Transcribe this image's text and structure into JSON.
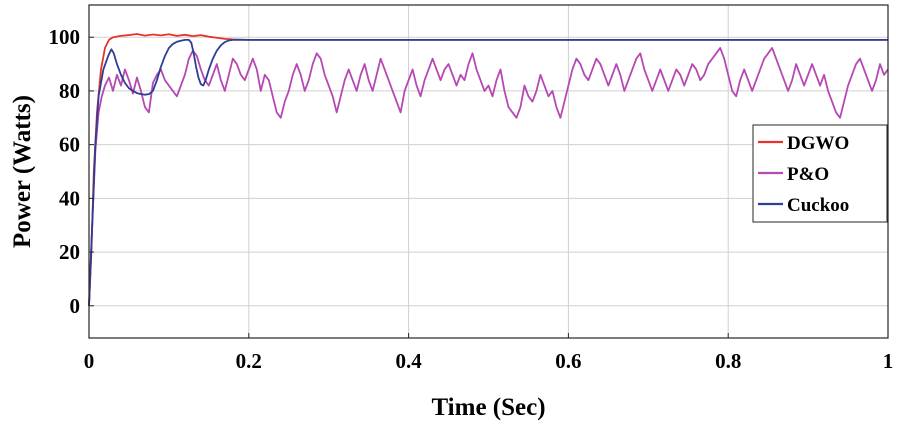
{
  "chart_data": {
    "type": "line",
    "title": "",
    "xlabel": "Time (Sec)",
    "ylabel": "Power (Watts)",
    "xlim": [
      0,
      1
    ],
    "ylim": [
      -12,
      112
    ],
    "xticks": [
      0,
      0.2,
      0.4,
      0.6,
      0.8,
      1
    ],
    "xtick_labels": [
      "0",
      "0.2",
      "0.4",
      "0.6",
      "0.8",
      "1"
    ],
    "yticks": [
      0,
      20,
      40,
      60,
      80,
      100
    ],
    "ytick_labels": [
      "0",
      "20",
      "40",
      "60",
      "80",
      "100"
    ],
    "grid": true,
    "legend_position": "right",
    "series": [
      {
        "name": "DGWO",
        "color": "#e8332a",
        "points": [
          [
            0,
            0
          ],
          [
            0.003,
            20
          ],
          [
            0.006,
            50
          ],
          [
            0.01,
            72
          ],
          [
            0.015,
            88
          ],
          [
            0.02,
            96
          ],
          [
            0.025,
            99
          ],
          [
            0.03,
            100
          ],
          [
            0.04,
            100.5
          ],
          [
            0.05,
            100.8
          ],
          [
            0.06,
            101.2
          ],
          [
            0.07,
            100.6
          ],
          [
            0.08,
            101
          ],
          [
            0.09,
            100.7
          ],
          [
            0.1,
            101.1
          ],
          [
            0.11,
            100.5
          ],
          [
            0.12,
            100.9
          ],
          [
            0.13,
            100.4
          ],
          [
            0.14,
            100.8
          ],
          [
            0.15,
            100.2
          ],
          [
            0.16,
            99.8
          ],
          [
            0.17,
            99.4
          ],
          [
            0.18,
            99.2
          ],
          [
            0.2,
            99
          ],
          [
            0.3,
            99
          ],
          [
            0.4,
            99
          ],
          [
            0.5,
            99
          ],
          [
            0.6,
            99
          ],
          [
            0.7,
            99
          ],
          [
            0.8,
            99
          ],
          [
            0.9,
            99
          ],
          [
            1,
            99
          ]
        ]
      },
      {
        "name": "P&O",
        "color": "#b648b3",
        "points": [
          [
            0,
            0
          ],
          [
            0.004,
            30
          ],
          [
            0.008,
            58
          ],
          [
            0.012,
            72
          ],
          [
            0.016,
            78
          ],
          [
            0.02,
            82
          ],
          [
            0.025,
            85
          ],
          [
            0.03,
            80
          ],
          [
            0.035,
            86
          ],
          [
            0.04,
            82
          ],
          [
            0.045,
            88
          ],
          [
            0.05,
            84
          ],
          [
            0.055,
            79
          ],
          [
            0.06,
            85
          ],
          [
            0.065,
            80
          ],
          [
            0.07,
            74
          ],
          [
            0.075,
            72
          ],
          [
            0.08,
            83
          ],
          [
            0.085,
            86
          ],
          [
            0.09,
            88
          ],
          [
            0.095,
            84
          ],
          [
            0.1,
            82
          ],
          [
            0.105,
            80
          ],
          [
            0.11,
            78
          ],
          [
            0.115,
            82
          ],
          [
            0.12,
            86
          ],
          [
            0.125,
            92
          ],
          [
            0.13,
            95
          ],
          [
            0.135,
            93
          ],
          [
            0.14,
            88
          ],
          [
            0.145,
            84
          ],
          [
            0.15,
            82
          ],
          [
            0.155,
            86
          ],
          [
            0.16,
            90
          ],
          [
            0.165,
            84
          ],
          [
            0.17,
            80
          ],
          [
            0.175,
            86
          ],
          [
            0.18,
            92
          ],
          [
            0.185,
            90
          ],
          [
            0.19,
            86
          ],
          [
            0.195,
            84
          ],
          [
            0.2,
            88
          ],
          [
            0.205,
            92
          ],
          [
            0.21,
            88
          ],
          [
            0.215,
            80
          ],
          [
            0.22,
            86
          ],
          [
            0.225,
            84
          ],
          [
            0.23,
            78
          ],
          [
            0.235,
            72
          ],
          [
            0.24,
            70
          ],
          [
            0.245,
            76
          ],
          [
            0.25,
            80
          ],
          [
            0.255,
            86
          ],
          [
            0.26,
            90
          ],
          [
            0.265,
            86
          ],
          [
            0.27,
            80
          ],
          [
            0.275,
            84
          ],
          [
            0.28,
            90
          ],
          [
            0.285,
            94
          ],
          [
            0.29,
            92
          ],
          [
            0.295,
            86
          ],
          [
            0.3,
            82
          ],
          [
            0.305,
            78
          ],
          [
            0.31,
            72
          ],
          [
            0.315,
            78
          ],
          [
            0.32,
            84
          ],
          [
            0.325,
            88
          ],
          [
            0.33,
            84
          ],
          [
            0.335,
            80
          ],
          [
            0.34,
            86
          ],
          [
            0.345,
            90
          ],
          [
            0.35,
            84
          ],
          [
            0.355,
            80
          ],
          [
            0.36,
            86
          ],
          [
            0.365,
            92
          ],
          [
            0.37,
            88
          ],
          [
            0.375,
            84
          ],
          [
            0.38,
            80
          ],
          [
            0.385,
            76
          ],
          [
            0.39,
            72
          ],
          [
            0.395,
            80
          ],
          [
            0.4,
            84
          ],
          [
            0.405,
            88
          ],
          [
            0.41,
            82
          ],
          [
            0.415,
            78
          ],
          [
            0.42,
            84
          ],
          [
            0.425,
            88
          ],
          [
            0.43,
            92
          ],
          [
            0.435,
            88
          ],
          [
            0.44,
            84
          ],
          [
            0.445,
            88
          ],
          [
            0.45,
            90
          ],
          [
            0.455,
            86
          ],
          [
            0.46,
            82
          ],
          [
            0.465,
            86
          ],
          [
            0.47,
            84
          ],
          [
            0.475,
            90
          ],
          [
            0.48,
            94
          ],
          [
            0.485,
            88
          ],
          [
            0.49,
            84
          ],
          [
            0.495,
            80
          ],
          [
            0.5,
            82
          ],
          [
            0.505,
            78
          ],
          [
            0.51,
            84
          ],
          [
            0.515,
            88
          ],
          [
            0.52,
            80
          ],
          [
            0.525,
            74
          ],
          [
            0.53,
            72
          ],
          [
            0.535,
            70
          ],
          [
            0.54,
            74
          ],
          [
            0.545,
            82
          ],
          [
            0.55,
            78
          ],
          [
            0.555,
            76
          ],
          [
            0.56,
            80
          ],
          [
            0.565,
            86
          ],
          [
            0.57,
            82
          ],
          [
            0.575,
            78
          ],
          [
            0.58,
            80
          ],
          [
            0.585,
            74
          ],
          [
            0.59,
            70
          ],
          [
            0.595,
            76
          ],
          [
            0.6,
            82
          ],
          [
            0.605,
            88
          ],
          [
            0.61,
            92
          ],
          [
            0.615,
            90
          ],
          [
            0.62,
            86
          ],
          [
            0.625,
            84
          ],
          [
            0.63,
            88
          ],
          [
            0.635,
            92
          ],
          [
            0.64,
            90
          ],
          [
            0.645,
            86
          ],
          [
            0.65,
            82
          ],
          [
            0.655,
            86
          ],
          [
            0.66,
            90
          ],
          [
            0.665,
            86
          ],
          [
            0.67,
            80
          ],
          [
            0.675,
            84
          ],
          [
            0.68,
            88
          ],
          [
            0.685,
            92
          ],
          [
            0.69,
            94
          ],
          [
            0.695,
            88
          ],
          [
            0.7,
            84
          ],
          [
            0.705,
            80
          ],
          [
            0.71,
            84
          ],
          [
            0.715,
            88
          ],
          [
            0.72,
            84
          ],
          [
            0.725,
            80
          ],
          [
            0.73,
            84
          ],
          [
            0.735,
            88
          ],
          [
            0.74,
            86
          ],
          [
            0.745,
            82
          ],
          [
            0.75,
            86
          ],
          [
            0.755,
            90
          ],
          [
            0.76,
            88
          ],
          [
            0.765,
            84
          ],
          [
            0.77,
            86
          ],
          [
            0.775,
            90
          ],
          [
            0.78,
            92
          ],
          [
            0.785,
            94
          ],
          [
            0.79,
            96
          ],
          [
            0.795,
            92
          ],
          [
            0.8,
            86
          ],
          [
            0.805,
            80
          ],
          [
            0.81,
            78
          ],
          [
            0.815,
            84
          ],
          [
            0.82,
            88
          ],
          [
            0.825,
            84
          ],
          [
            0.83,
            80
          ],
          [
            0.835,
            84
          ],
          [
            0.84,
            88
          ],
          [
            0.845,
            92
          ],
          [
            0.85,
            94
          ],
          [
            0.855,
            96
          ],
          [
            0.86,
            92
          ],
          [
            0.865,
            88
          ],
          [
            0.87,
            84
          ],
          [
            0.875,
            80
          ],
          [
            0.88,
            84
          ],
          [
            0.885,
            90
          ],
          [
            0.89,
            86
          ],
          [
            0.895,
            82
          ],
          [
            0.9,
            86
          ],
          [
            0.905,
            90
          ],
          [
            0.91,
            86
          ],
          [
            0.915,
            82
          ],
          [
            0.92,
            86
          ],
          [
            0.925,
            80
          ],
          [
            0.93,
            76
          ],
          [
            0.935,
            72
          ],
          [
            0.94,
            70
          ],
          [
            0.945,
            76
          ],
          [
            0.95,
            82
          ],
          [
            0.955,
            86
          ],
          [
            0.96,
            90
          ],
          [
            0.965,
            92
          ],
          [
            0.97,
            88
          ],
          [
            0.975,
            84
          ],
          [
            0.98,
            80
          ],
          [
            0.985,
            84
          ],
          [
            0.99,
            90
          ],
          [
            0.995,
            86
          ],
          [
            1,
            88
          ]
        ]
      },
      {
        "name": "Cuckoo",
        "color": "#2d3e96",
        "points": [
          [
            0,
            0
          ],
          [
            0.004,
            30
          ],
          [
            0.008,
            60
          ],
          [
            0.012,
            78
          ],
          [
            0.018,
            88
          ],
          [
            0.024,
            93
          ],
          [
            0.028,
            95.5
          ],
          [
            0.031,
            94
          ],
          [
            0.035,
            90
          ],
          [
            0.04,
            86
          ],
          [
            0.045,
            83
          ],
          [
            0.05,
            81
          ],
          [
            0.055,
            80
          ],
          [
            0.06,
            79.2
          ],
          [
            0.065,
            78.8
          ],
          [
            0.07,
            78.6
          ],
          [
            0.075,
            78.8
          ],
          [
            0.08,
            80
          ],
          [
            0.085,
            84
          ],
          [
            0.09,
            89
          ],
          [
            0.095,
            93
          ],
          [
            0.1,
            96
          ],
          [
            0.105,
            97.5
          ],
          [
            0.11,
            98.3
          ],
          [
            0.115,
            98.7
          ],
          [
            0.12,
            99
          ],
          [
            0.125,
            99
          ],
          [
            0.128,
            98
          ],
          [
            0.131,
            94
          ],
          [
            0.134,
            89
          ],
          [
            0.137,
            85
          ],
          [
            0.14,
            82.5
          ],
          [
            0.143,
            82
          ],
          [
            0.146,
            84
          ],
          [
            0.15,
            88
          ],
          [
            0.155,
            92
          ],
          [
            0.16,
            95
          ],
          [
            0.165,
            97
          ],
          [
            0.17,
            98.2
          ],
          [
            0.175,
            98.8
          ],
          [
            0.18,
            99
          ],
          [
            0.2,
            99
          ],
          [
            0.3,
            99
          ],
          [
            0.4,
            99
          ],
          [
            0.5,
            99
          ],
          [
            0.6,
            99
          ],
          [
            0.7,
            99
          ],
          [
            0.8,
            99
          ],
          [
            0.9,
            99
          ],
          [
            1,
            99
          ]
        ]
      }
    ]
  }
}
